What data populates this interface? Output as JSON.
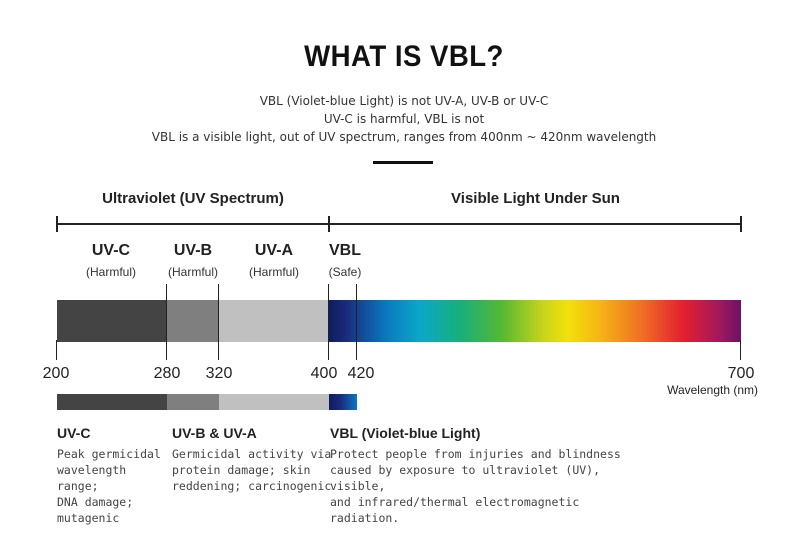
{
  "title": "WHAT IS VBL?",
  "subtitle_lines": [
    "VBL (Violet-blue Light) is not UV-A, UV-B or UV-C",
    "UV-C is harmful, VBL is not",
    "VBL is a visible light, out of UV spectrum, ranges from 400nm ~ 420nm wavelength"
  ],
  "ranges": {
    "uv": "Ultraviolet (UV Spectrum)",
    "visible": "Visible Light Under Sun"
  },
  "bands": [
    {
      "name": "UV-C",
      "note": "(Harmful)",
      "from": 200,
      "to": 280,
      "color": "#444444"
    },
    {
      "name": "UV-B",
      "note": "(Harmful)",
      "from": 280,
      "to": 320,
      "color": "#7f7f7f"
    },
    {
      "name": "UV-A",
      "note": "(Harmful)",
      "from": 320,
      "to": 400,
      "color": "#c0c0c0"
    },
    {
      "name": "VBL",
      "note": "(Safe)",
      "from": 400,
      "to": 420,
      "color": "#1c2f7a"
    }
  ],
  "axis": {
    "ticks": [
      "200",
      "280",
      "320",
      "400",
      "420",
      "700"
    ],
    "label": "Wavelength (nm)"
  },
  "descriptions": [
    {
      "heading": "UV-C",
      "text": "Peak germicidal\nwavelength range;\nDNA damage;\nmutagenic"
    },
    {
      "heading": "UV-B & UV-A",
      "text": "Germicidal activity via\nprotein damage; skin\nreddening; carcinogenic"
    },
    {
      "heading": "VBL (Violet-blue Light)",
      "text": "Protect people from injuries and blindness\ncaused by exposure to ultraviolet (UV), visible,\nand infrared/thermal electromagnetic radiation."
    }
  ]
}
